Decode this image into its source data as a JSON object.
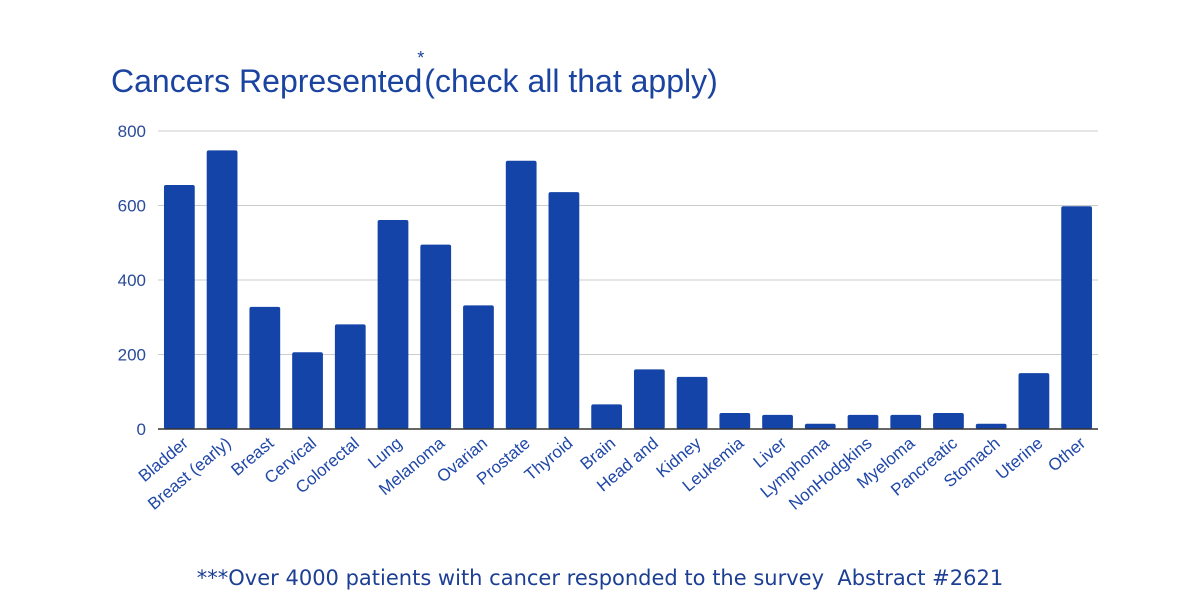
{
  "chart_data": {
    "type": "bar",
    "title": "Cancers Represented",
    "title_marker": "*",
    "subtitle": "(check all that apply)",
    "categories": [
      "Bladder",
      "Breast (early)",
      "Breast",
      "Cervical",
      "Colorectal",
      "Lung",
      "Melanoma",
      "Ovarian",
      "Prostate",
      "Thyroid",
      "Brain",
      "Head and",
      "Kidney",
      "Leukemia",
      "Liver",
      "Lymphoma",
      "NonHodgkins",
      "Myeloma",
      "Pancreatic",
      "Stomach",
      "Uterine",
      "Other"
    ],
    "values": [
      655,
      748,
      328,
      206,
      281,
      561,
      495,
      332,
      720,
      636,
      66,
      160,
      140,
      43,
      38,
      14,
      38,
      38,
      43,
      14,
      150,
      598
    ],
    "ylim": [
      0,
      800
    ],
    "yticks": [
      0,
      200,
      400,
      600,
      800
    ],
    "xlabel": "",
    "ylabel": "",
    "grid": true,
    "colors": {
      "bar": "#1444a8",
      "title": "#1a44a0",
      "grid": "#cccccc"
    }
  },
  "footnote": "***Over 4000 patients with cancer responded to the survey  Abstract #2621"
}
